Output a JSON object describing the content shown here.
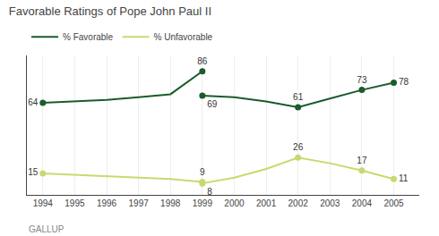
{
  "chart_data": {
    "type": "line",
    "title": "Favorable Ratings of Pope John Paul II",
    "x": [
      1994,
      1995,
      1996,
      1997,
      1998,
      1999,
      1999,
      1999,
      2000,
      2001,
      2002,
      2003,
      2004,
      2005
    ],
    "series": [
      {
        "name": "% Favorable",
        "color": "#1a5c2a",
        "values": [
          64,
          65,
          66,
          68,
          70,
          86,
          null,
          69,
          68,
          65,
          61,
          67,
          73,
          78
        ],
        "value_labels": [
          "64",
          null,
          null,
          null,
          null,
          "86",
          null,
          "69",
          null,
          null,
          "61",
          null,
          "73",
          "78"
        ]
      },
      {
        "name": "% Unfavorable",
        "color": "#c8d96f",
        "values": [
          15,
          14,
          13,
          12,
          11,
          9,
          null,
          8,
          12,
          18,
          26,
          22,
          17,
          11
        ],
        "value_labels": [
          "15",
          null,
          null,
          null,
          null,
          "9",
          null,
          "8",
          null,
          null,
          "26",
          null,
          "17",
          "11"
        ]
      }
    ],
    "xlim": [
      1993.5,
      2005.8
    ],
    "xticks": [
      1994,
      1995,
      1996,
      1997,
      1998,
      1999,
      2000,
      2001,
      2002,
      2003,
      2004,
      2005
    ],
    "ylim": [
      0,
      97
    ],
    "grid": true,
    "legend": "top-left",
    "tick_labels": "x",
    "data_labels": true,
    "marker": "circle",
    "annotations": [
      "GALLUP"
    ]
  }
}
